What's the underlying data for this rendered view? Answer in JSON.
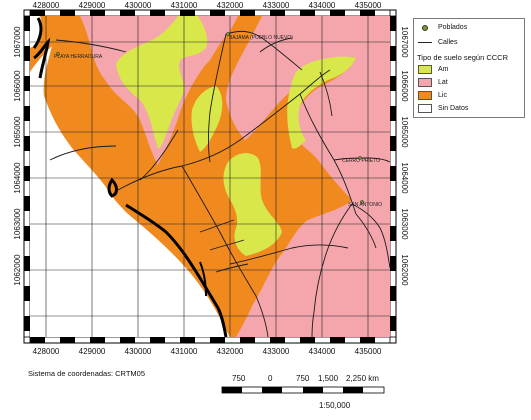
{
  "map": {
    "x_ticks": [
      "428000",
      "429000",
      "430000",
      "431000",
      "432000",
      "433000",
      "434000",
      "435000"
    ],
    "y_ticks": [
      "1067000",
      "1066000",
      "1065000",
      "1064000",
      "1063000",
      "1062000"
    ],
    "place_labels": [
      {
        "id": "playa-herradura",
        "text": "PLAYA HERRADURA"
      },
      {
        "id": "bajamar",
        "text": "BAJAMA (PUEBLO NUEVO)"
      },
      {
        "id": "cerro-prieto",
        "text": "CERRO PRIETO"
      },
      {
        "id": "san-antonio",
        "text": "SAN ANTONIO"
      }
    ],
    "colors": {
      "Am": "#d8e84a",
      "Lat": "#f5a6ad",
      "Lic": "#f08a1e",
      "sin_datos": "#ffffff",
      "roads": "#1a1a1a",
      "grid": "#222222"
    }
  },
  "legend": {
    "poblados": "Poblados",
    "calles": "Calles",
    "title": "Tipo de suelo según CCCR",
    "items": [
      {
        "label": "Am",
        "color": "#d8e84a"
      },
      {
        "label": "Lat",
        "color": "#f5a6ad"
      },
      {
        "label": "Lic",
        "color": "#f08a1e"
      },
      {
        "label": "Sin Datos",
        "color": "#ffffff"
      }
    ]
  },
  "footer": {
    "coord_system": "Sistema de coordenadas: CRTM05",
    "scale_labels": [
      "750",
      "0",
      "750",
      "1,500",
      "2,250 km"
    ],
    "scale_ratio": "1:50,000"
  }
}
